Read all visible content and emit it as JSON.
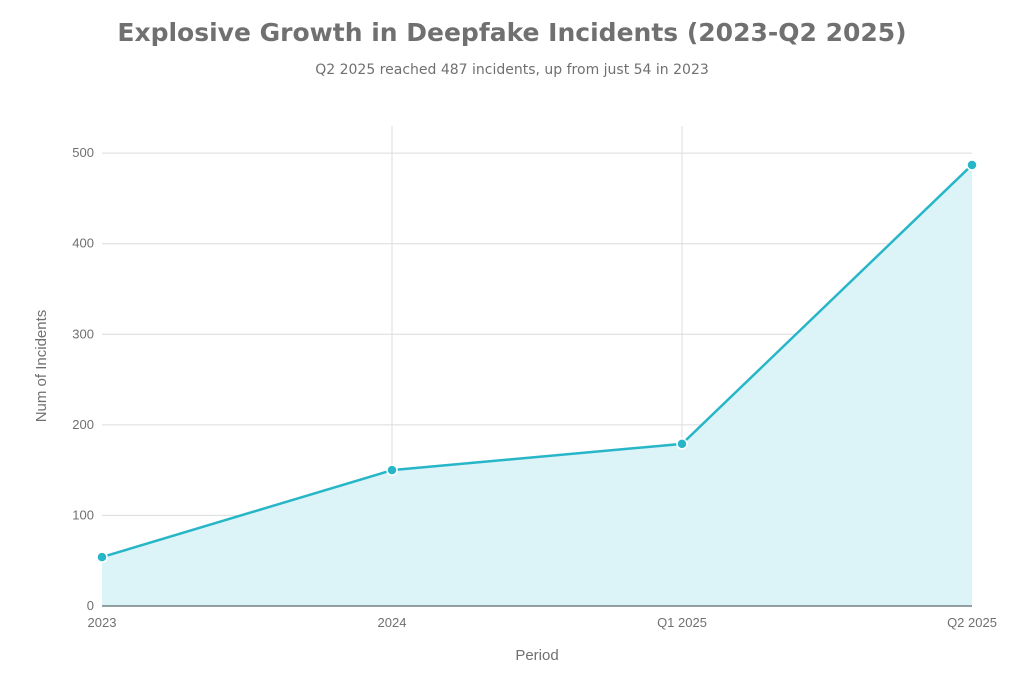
{
  "chart_data": {
    "type": "area",
    "title": "Explosive Growth in Deepfake Incidents (2023-Q2 2025)",
    "subtitle": "Q2 2025 reached 487 incidents, up from just 54 in 2023",
    "xlabel": "Period",
    "ylabel": "Num of Incidents",
    "categories": [
      "2023",
      "2024",
      "Q1 2025",
      "Q2 2025"
    ],
    "series": [
      {
        "values": [
          54,
          150,
          179,
          487
        ],
        "color": "#27b6c8"
      }
    ],
    "ylim": [
      0,
      530
    ],
    "yticks": [
      0,
      100,
      200,
      300,
      400,
      500
    ],
    "grid": true,
    "fill_color": "#dcf3f7"
  }
}
